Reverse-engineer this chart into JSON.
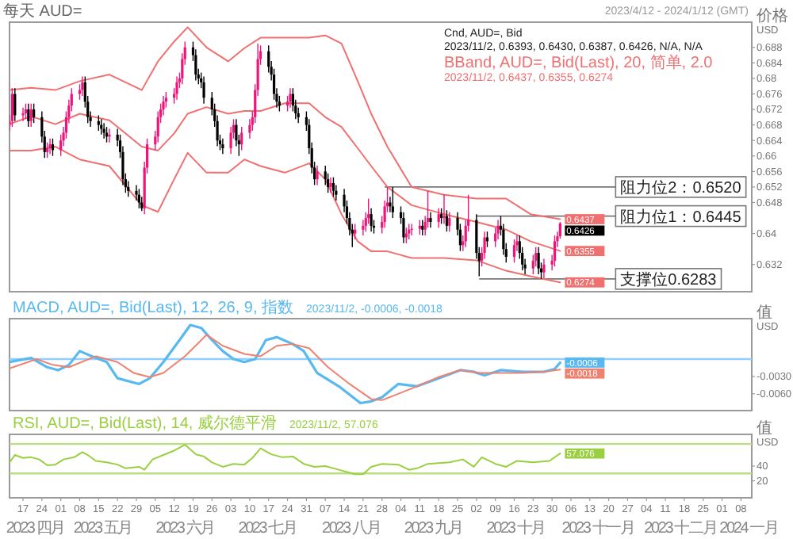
{
  "chart_data": [
    {
      "type": "candlestick",
      "title": "每天 AUD=",
      "subtitle": "2023/4/12 - 2024/1/12 (GMT)",
      "ylabel": "价格\nUSD",
      "x": [
        "2023-04-12",
        "2023-04-13",
        "2023-04-14",
        "2023-04-17",
        "2023-04-18",
        "2023-04-19",
        "2023-04-20",
        "2023-04-21",
        "2023-04-24",
        "2023-04-25",
        "2023-04-26",
        "2023-04-27",
        "2023-04-28",
        "2023-05-01",
        "2023-05-02",
        "2023-05-03",
        "2023-05-04",
        "2023-05-05",
        "2023-05-08",
        "2023-05-09",
        "2023-05-10",
        "2023-05-11",
        "2023-05-12",
        "2023-05-15",
        "2023-05-16",
        "2023-05-17",
        "2023-05-18",
        "2023-05-19",
        "2023-05-22",
        "2023-05-23",
        "2023-05-24",
        "2023-05-25",
        "2023-05-26",
        "2023-05-29",
        "2023-05-30",
        "2023-05-31",
        "2023-06-01",
        "2023-06-02",
        "2023-06-05",
        "2023-06-06",
        "2023-06-07",
        "2023-06-08",
        "2023-06-09",
        "2023-06-12",
        "2023-06-13",
        "2023-06-14",
        "2023-06-15",
        "2023-06-16",
        "2023-06-19",
        "2023-06-20",
        "2023-06-21",
        "2023-06-22",
        "2023-06-23",
        "2023-06-26",
        "2023-06-27",
        "2023-06-28",
        "2023-06-29",
        "2023-06-30",
        "2023-07-03",
        "2023-07-04",
        "2023-07-05",
        "2023-07-06",
        "2023-07-07",
        "2023-07-10",
        "2023-07-11",
        "2023-07-12",
        "2023-07-13",
        "2023-07-14",
        "2023-07-17",
        "2023-07-18",
        "2023-07-19",
        "2023-07-20",
        "2023-07-21",
        "2023-07-24",
        "2023-07-25",
        "2023-07-26",
        "2023-07-27",
        "2023-07-28",
        "2023-07-31",
        "2023-08-01",
        "2023-08-02",
        "2023-08-03",
        "2023-08-04",
        "2023-08-07",
        "2023-08-08",
        "2023-08-09",
        "2023-08-10",
        "2023-08-11",
        "2023-08-14",
        "2023-08-15",
        "2023-08-16",
        "2023-08-17",
        "2023-08-18",
        "2023-08-21",
        "2023-08-22",
        "2023-08-23",
        "2023-08-24",
        "2023-08-25",
        "2023-08-28",
        "2023-08-29",
        "2023-08-30",
        "2023-08-31",
        "2023-09-01",
        "2023-09-04",
        "2023-09-05",
        "2023-09-06",
        "2023-09-07",
        "2023-09-08",
        "2023-09-11",
        "2023-09-12",
        "2023-09-13",
        "2023-09-14",
        "2023-09-15",
        "2023-09-18",
        "2023-09-19",
        "2023-09-20",
        "2023-09-21",
        "2023-09-22",
        "2023-09-25",
        "2023-09-26",
        "2023-09-27",
        "2023-09-28",
        "2023-09-29",
        "2023-10-02",
        "2023-10-03",
        "2023-10-04",
        "2023-10-05",
        "2023-10-06",
        "2023-10-09",
        "2023-10-10",
        "2023-10-11",
        "2023-10-12",
        "2023-10-13",
        "2023-10-16",
        "2023-10-17",
        "2023-10-18",
        "2023-10-19",
        "2023-10-20",
        "2023-10-23",
        "2023-10-24",
        "2023-10-25",
        "2023-10-26",
        "2023-10-27",
        "2023-10-30",
        "2023-10-31",
        "2023-11-01",
        "2023-11-02"
      ],
      "ohlc": [
        [
          0.668,
          0.6705,
          0.6665,
          0.669
        ],
        [
          0.669,
          0.6775,
          0.6675,
          0.676
        ],
        [
          0.676,
          0.6775,
          0.669,
          0.6705
        ],
        [
          0.6705,
          0.6725,
          0.669,
          0.671
        ],
        [
          0.671,
          0.6735,
          0.6695,
          0.672
        ],
        [
          0.672,
          0.6735,
          0.6675,
          0.669
        ],
        [
          0.669,
          0.6735,
          0.6675,
          0.672
        ],
        [
          0.672,
          0.6735,
          0.6685,
          0.67
        ],
        [
          0.67,
          0.6715,
          0.6635,
          0.665
        ],
        [
          0.665,
          0.6665,
          0.6595,
          0.661
        ],
        [
          0.661,
          0.6635,
          0.6595,
          0.662
        ],
        [
          0.662,
          0.6645,
          0.6605,
          0.663
        ],
        [
          0.663,
          0.6645,
          0.66,
          0.6615
        ],
        [
          0.6615,
          0.6655,
          0.66,
          0.664
        ],
        [
          0.664,
          0.6675,
          0.6625,
          0.666
        ],
        [
          0.666,
          0.6715,
          0.6645,
          0.67
        ],
        [
          0.67,
          0.6745,
          0.6685,
          0.673
        ],
        [
          0.673,
          0.6775,
          0.6715,
          0.676
        ],
        [
          0.676,
          0.6785,
          0.6745,
          0.677
        ],
        [
          0.677,
          0.6805,
          0.6755,
          0.679
        ],
        [
          0.679,
          0.6805,
          0.6725,
          0.674
        ],
        [
          0.674,
          0.6755,
          0.6685,
          0.67
        ],
        [
          0.67,
          0.6715,
          0.6675,
          0.669
        ],
        [
          0.669,
          0.6705,
          0.6665,
          0.668
        ],
        [
          0.668,
          0.6695,
          0.6655,
          0.667
        ],
        [
          0.667,
          0.6685,
          0.6645,
          0.666
        ],
        [
          0.666,
          0.6675,
          0.6635,
          0.665
        ],
        [
          0.665,
          0.667,
          0.6635,
          0.6655
        ],
        [
          0.6655,
          0.667,
          0.6625,
          0.664
        ],
        [
          0.664,
          0.6655,
          0.6595,
          0.661
        ],
        [
          0.661,
          0.6625,
          0.6525,
          0.654
        ],
        [
          0.654,
          0.6555,
          0.6505,
          0.652
        ],
        [
          0.652,
          0.6535,
          0.6495,
          0.651
        ],
        [
          0.651,
          0.6525,
          0.6485,
          0.65
        ],
        [
          0.65,
          0.6515,
          0.6465,
          0.648
        ],
        [
          0.648,
          0.6495,
          0.6458,
          0.6465
        ],
        [
          0.6465,
          0.6585,
          0.645,
          0.657
        ],
        [
          0.657,
          0.6645,
          0.6555,
          0.663
        ],
        [
          0.663,
          0.6665,
          0.6615,
          0.665
        ],
        [
          0.665,
          0.6715,
          0.6635,
          0.67
        ],
        [
          0.67,
          0.6735,
          0.6685,
          0.672
        ],
        [
          0.672,
          0.6755,
          0.6705,
          0.674
        ],
        [
          0.674,
          0.6765,
          0.6725,
          0.675
        ],
        [
          0.675,
          0.6775,
          0.6735,
          0.676
        ],
        [
          0.676,
          0.6805,
          0.6745,
          0.679
        ],
        [
          0.679,
          0.6815,
          0.6775,
          0.68
        ],
        [
          0.68,
          0.6865,
          0.6785,
          0.685
        ],
        [
          0.685,
          0.6895,
          0.6835,
          0.688
        ],
        [
          0.688,
          0.6895,
          0.6845,
          0.686
        ],
        [
          0.686,
          0.6875,
          0.6795,
          0.681
        ],
        [
          0.681,
          0.6825,
          0.6785,
          0.68
        ],
        [
          0.68,
          0.6815,
          0.6775,
          0.679
        ],
        [
          0.679,
          0.6805,
          0.6735,
          0.675
        ],
        [
          0.675,
          0.6765,
          0.6705,
          0.672
        ],
        [
          0.672,
          0.6735,
          0.6675,
          0.669
        ],
        [
          0.669,
          0.6705,
          0.6625,
          0.664
        ],
        [
          0.664,
          0.6655,
          0.6615,
          0.663
        ],
        [
          0.663,
          0.6645,
          0.6605,
          0.662
        ],
        [
          0.662,
          0.6675,
          0.6605,
          0.666
        ],
        [
          0.666,
          0.6695,
          0.6645,
          0.668
        ],
        [
          0.668,
          0.6695,
          0.6625,
          0.664
        ],
        [
          0.664,
          0.6655,
          0.66,
          0.663
        ],
        [
          0.663,
          0.6675,
          0.6615,
          0.666
        ],
        [
          0.666,
          0.6695,
          0.6645,
          0.668
        ],
        [
          0.668,
          0.6715,
          0.6665,
          0.67
        ],
        [
          0.67,
          0.6785,
          0.6685,
          0.677
        ],
        [
          0.677,
          0.689,
          0.6755,
          0.685
        ],
        [
          0.685,
          0.6885,
          0.6835,
          0.687
        ],
        [
          0.687,
          0.6885,
          0.6815,
          0.683
        ],
        [
          0.683,
          0.6845,
          0.6795,
          0.681
        ],
        [
          0.681,
          0.6825,
          0.6745,
          0.676
        ],
        [
          0.676,
          0.6775,
          0.6725,
          0.674
        ],
        [
          0.674,
          0.6755,
          0.6715,
          0.673
        ],
        [
          0.673,
          0.6755,
          0.6715,
          0.674
        ],
        [
          0.674,
          0.6775,
          0.6725,
          0.676
        ],
        [
          0.676,
          0.6775,
          0.6715,
          0.673
        ],
        [
          0.673,
          0.6745,
          0.6695,
          0.671
        ],
        [
          0.671,
          0.6725,
          0.6685,
          0.67
        ],
        [
          0.67,
          0.6715,
          0.6665,
          0.668
        ],
        [
          0.668,
          0.6695,
          0.6605,
          0.662
        ],
        [
          0.662,
          0.6635,
          0.6555,
          0.657
        ],
        [
          0.657,
          0.6585,
          0.6525,
          0.654
        ],
        [
          0.654,
          0.6575,
          0.6525,
          0.656
        ],
        [
          0.656,
          0.6575,
          0.6525,
          0.654
        ],
        [
          0.654,
          0.6555,
          0.6505,
          0.652
        ],
        [
          0.652,
          0.6545,
          0.6505,
          0.653
        ],
        [
          0.653,
          0.6545,
          0.6495,
          0.651
        ],
        [
          0.651,
          0.6525,
          0.6485,
          0.65
        ],
        [
          0.65,
          0.6515,
          0.6455,
          0.647
        ],
        [
          0.647,
          0.6485,
          0.6425,
          0.644
        ],
        [
          0.644,
          0.6455,
          0.6395,
          0.641
        ],
        [
          0.641,
          0.6425,
          0.6365,
          0.64
        ],
        [
          0.64,
          0.6425,
          0.6385,
          0.641
        ],
        [
          0.641,
          0.6435,
          0.6395,
          0.642
        ],
        [
          0.642,
          0.6455,
          0.6405,
          0.644
        ],
        [
          0.644,
          0.649,
          0.6425,
          0.645
        ],
        [
          0.645,
          0.6465,
          0.6405,
          0.642
        ],
        [
          0.642,
          0.6435,
          0.64,
          0.6415
        ],
        [
          0.6415,
          0.6445,
          0.64,
          0.643
        ],
        [
          0.643,
          0.6485,
          0.6415,
          0.647
        ],
        [
          0.647,
          0.652,
          0.6455,
          0.648
        ],
        [
          0.648,
          0.6495,
          0.6455,
          0.647
        ],
        [
          0.647,
          0.652,
          0.644,
          0.6455
        ],
        [
          0.6455,
          0.647,
          0.6425,
          0.644
        ],
        [
          0.644,
          0.6455,
          0.6375,
          0.639
        ],
        [
          0.639,
          0.6415,
          0.6375,
          0.64
        ],
        [
          0.64,
          0.6425,
          0.6385,
          0.641
        ],
        [
          0.641,
          0.6425,
          0.6395,
          0.6412
        ],
        [
          0.6412,
          0.6435,
          0.6397,
          0.642
        ],
        [
          0.642,
          0.6435,
          0.6395,
          0.641
        ],
        [
          0.641,
          0.6445,
          0.6395,
          0.643
        ],
        [
          0.643,
          0.651,
          0.6415,
          0.644
        ],
        [
          0.644,
          0.6455,
          0.6415,
          0.643
        ],
        [
          0.643,
          0.6465,
          0.6415,
          0.645
        ],
        [
          0.645,
          0.6465,
          0.6425,
          0.644
        ],
        [
          0.644,
          0.65,
          0.6425,
          0.6445
        ],
        [
          0.6445,
          0.646,
          0.6405,
          0.642
        ],
        [
          0.642,
          0.6455,
          0.6405,
          0.644
        ],
        [
          0.644,
          0.6455,
          0.6395,
          0.641
        ],
        [
          0.641,
          0.6425,
          0.6355,
          0.637
        ],
        [
          0.637,
          0.6395,
          0.6355,
          0.638
        ],
        [
          0.638,
          0.6435,
          0.6365,
          0.642
        ],
        [
          0.642,
          0.65,
          0.6405,
          0.6435
        ],
        [
          0.6435,
          0.645,
          0.6335,
          0.635
        ],
        [
          0.635,
          0.6365,
          0.629,
          0.633
        ],
        [
          0.633,
          0.6365,
          0.6315,
          0.635
        ],
        [
          0.635,
          0.6405,
          0.6335,
          0.639
        ],
        [
          0.639,
          0.6405,
          0.6365,
          0.638
        ],
        [
          0.638,
          0.6415,
          0.6365,
          0.64
        ],
        [
          0.64,
          0.6435,
          0.6385,
          0.642
        ],
        [
          0.642,
          0.6445,
          0.6395,
          0.641
        ],
        [
          0.641,
          0.6425,
          0.6345,
          0.636
        ],
        [
          0.636,
          0.6375,
          0.6325,
          0.634
        ],
        [
          0.634,
          0.6385,
          0.6325,
          0.637
        ],
        [
          0.637,
          0.6395,
          0.6355,
          0.638
        ],
        [
          0.638,
          0.6395,
          0.6335,
          0.635
        ],
        [
          0.635,
          0.6365,
          0.6305,
          0.632
        ],
        [
          0.632,
          0.6335,
          0.6295,
          0.631
        ],
        [
          0.631,
          0.6345,
          0.6295,
          0.633
        ],
        [
          0.633,
          0.6365,
          0.6315,
          0.635
        ],
        [
          0.635,
          0.6365,
          0.6295,
          0.631
        ],
        [
          0.631,
          0.6325,
          0.6283,
          0.63
        ],
        [
          0.63,
          0.6335,
          0.6285,
          0.632
        ],
        [
          0.632,
          0.6345,
          0.6305,
          0.633
        ],
        [
          0.633,
          0.6395,
          0.6315,
          0.638
        ],
        [
          0.638,
          0.6405,
          0.6365,
          0.6393
        ],
        [
          0.6393,
          0.643,
          0.6387,
          0.6426
        ]
      ],
      "value_labels": [
        null,
        null,
        null,
        null,
        null,
        null,
        null,
        null,
        null,
        null,
        null,
        null,
        null,
        null,
        null,
        null,
        null,
        null,
        null,
        null,
        null,
        null,
        null,
        null,
        null,
        null,
        null,
        null,
        null,
        null,
        null,
        null,
        null,
        null,
        null,
        null,
        null,
        null,
        null,
        null,
        null,
        null,
        null,
        null,
        null,
        null,
        null,
        null,
        null,
        null,
        null,
        null,
        null,
        null,
        null,
        null,
        null,
        null,
        null,
        null,
        null,
        null,
        null,
        null,
        null,
        null,
        null,
        null,
        null,
        null,
        null,
        null,
        null,
        null,
        null,
        null,
        null,
        null,
        null,
        null,
        null,
        null,
        null,
        null,
        null,
        null,
        null,
        null,
        null,
        null,
        null,
        null,
        null,
        null,
        null,
        null,
        null,
        null,
        null,
        null,
        null,
        null,
        null,
        null,
        null,
        null,
        null,
        null,
        null,
        null,
        null,
        null,
        null,
        null,
        null,
        null,
        null,
        null,
        null,
        null,
        null,
        null,
        null,
        null,
        null,
        null,
        null,
        null,
        null,
        null,
        null,
        null,
        null,
        null,
        null,
        null,
        null,
        null,
        null,
        null,
        null,
        null,
        null,
        null,
        null,
        null,
        "0.6426"
      ],
      "series": [
        {
          "type": "line",
          "color": "#f07070",
          "x": [
            "2023-04-12",
            "2023-04-20",
            "2023-04-29",
            "2023-05-08",
            "2023-05-19",
            "2023-05-31",
            "2023-06-06",
            "2023-06-12",
            "2023-06-17",
            "2023-06-24",
            "2023-07-02",
            "2023-07-08",
            "2023-07-14",
            "2023-07-23",
            "2023-08-01",
            "2023-08-07",
            "2023-08-13",
            "2023-08-19",
            "2023-08-24",
            "2023-08-30",
            "2023-09-08",
            "2023-09-20",
            "2023-10-02",
            "2023-10-13",
            "2023-10-22",
            "2023-11-02"
          ],
          "values": [
            0.677,
            0.6776,
            0.677,
            0.6793,
            0.681,
            0.677,
            0.6844,
            0.6895,
            0.6932,
            0.688,
            0.6844,
            0.6878,
            0.6905,
            0.6905,
            0.6905,
            0.6911,
            0.689,
            0.6793,
            0.6709,
            0.6624,
            0.652,
            0.65,
            0.649,
            0.649,
            0.645,
            0.6437
          ],
          "value_labels": [
            null,
            null,
            null,
            null,
            null,
            null,
            null,
            null,
            null,
            null,
            null,
            null,
            null,
            null,
            null,
            null,
            null,
            null,
            null,
            null,
            null,
            null,
            null,
            null,
            null,
            "0.6437"
          ]
        },
        {
          "type": "line",
          "color": "#f07070",
          "x": [
            "2023-04-12",
            "2023-04-20",
            "2023-04-29",
            "2023-05-08",
            "2023-05-19",
            "2023-05-31",
            "2023-06-06",
            "2023-06-12",
            "2023-06-17",
            "2023-06-24",
            "2023-07-02",
            "2023-07-08",
            "2023-07-14",
            "2023-07-23",
            "2023-08-01",
            "2023-08-07",
            "2023-08-13",
            "2023-08-19",
            "2023-08-24",
            "2023-08-30",
            "2023-09-08",
            "2023-09-20",
            "2023-10-02",
            "2023-10-13",
            "2023-10-22",
            "2023-11-02"
          ],
          "values": [
            0.6682,
            0.6702,
            0.6682,
            0.6709,
            0.6692,
            0.6624,
            0.6614,
            0.6658,
            0.6709,
            0.6726,
            0.6709,
            0.6716,
            0.6716,
            0.6736,
            0.6736,
            0.67,
            0.6675,
            0.662,
            0.6574,
            0.652,
            0.6473,
            0.645,
            0.643,
            0.641,
            0.638,
            0.6355
          ],
          "value_labels": [
            null,
            null,
            null,
            null,
            null,
            null,
            null,
            null,
            null,
            null,
            null,
            null,
            null,
            null,
            null,
            null,
            null,
            null,
            null,
            null,
            null,
            null,
            null,
            null,
            null,
            "0.6355"
          ]
        },
        {
          "type": "line",
          "color": "#f07070",
          "x": [
            "2023-04-12",
            "2023-04-20",
            "2023-04-29",
            "2023-05-08",
            "2023-05-19",
            "2023-05-31",
            "2023-06-06",
            "2023-06-12",
            "2023-06-17",
            "2023-06-24",
            "2023-07-02",
            "2023-07-08",
            "2023-07-14",
            "2023-07-23",
            "2023-08-01",
            "2023-08-07",
            "2023-08-13",
            "2023-08-19",
            "2023-08-24",
            "2023-08-30",
            "2023-09-08",
            "2023-09-20",
            "2023-10-02",
            "2023-10-13",
            "2023-10-22",
            "2023-11-02"
          ],
          "values": [
            0.6614,
            0.6614,
            0.6624,
            0.6591,
            0.6574,
            0.6473,
            0.6456,
            0.654,
            0.6608,
            0.6557,
            0.6557,
            0.6591,
            0.6574,
            0.6557,
            0.6581,
            0.654,
            0.645,
            0.638,
            0.6354,
            0.6354,
            0.6337,
            0.6337,
            0.6331,
            0.6304,
            0.629,
            0.6274
          ],
          "value_labels": [
            null,
            null,
            null,
            null,
            null,
            null,
            null,
            null,
            null,
            null,
            null,
            null,
            null,
            null,
            null,
            null,
            null,
            null,
            null,
            null,
            null,
            null,
            null,
            null,
            null,
            "0.6274"
          ]
        }
      ],
      "xlim": [
        "2023-04-12",
        "2024-01-12"
      ],
      "ylim": [
        0.625,
        0.6945
      ],
      "yticks": [
        0.632,
        0.64,
        0.648,
        0.652,
        0.656,
        0.66,
        0.664,
        0.668,
        0.672,
        0.676,
        0.68,
        0.684,
        0.688
      ],
      "tick_labels": "y",
      "annotations": [
        "Cnd, AUD=, Bid",
        "2023/11/2, 0.6393, 0.6430, 0.6387, 0.6426, N/A, N/A",
        "BBand, AUD=, Bid(Last), 20, 简单, 2.0",
        "2023/11/2, 0.6437, 0.6355, 0.6274",
        {
          "text": "阻力位2：0.6520",
          "x": "2023-08-29",
          "y": 0.652
        },
        {
          "text": "阻力位1：0.6445",
          "x": "2023-10-02",
          "y": 0.6445
        },
        {
          "text": "支撑位0.6283",
          "x": "2023-10-03",
          "y": 0.6283
        }
      ]
    },
    {
      "type": "line",
      "ylabel": "值\nUSD",
      "series": [
        {
          "color": "#58b8f0",
          "x": [
            "2023-04-12",
            "2023-04-20",
            "2023-04-26",
            "2023-04-30",
            "2023-05-04",
            "2023-05-08",
            "2023-05-12",
            "2023-05-18",
            "2023-05-22",
            "2023-05-30",
            "2023-06-03",
            "2023-06-08",
            "2023-06-14",
            "2023-06-18",
            "2023-06-22",
            "2023-06-26",
            "2023-06-30",
            "2023-07-04",
            "2023-07-08",
            "2023-07-12",
            "2023-07-16",
            "2023-07-20",
            "2023-07-26",
            "2023-07-30",
            "2023-08-04",
            "2023-08-12",
            "2023-08-20",
            "2023-08-24",
            "2023-08-28",
            "2023-09-03",
            "2023-09-10",
            "2023-09-18",
            "2023-09-26",
            "2023-10-01",
            "2023-10-05",
            "2023-10-11",
            "2023-10-19",
            "2023-10-27",
            "2023-10-31",
            "2023-11-02"
          ],
          "values": [
            -0.0005,
            0.0002,
            -0.0014,
            -0.0019,
            -0.001,
            0.0014,
            0.0006,
            -0.0005,
            -0.0033,
            -0.0043,
            -0.0033,
            -0.0005,
            0.0033,
            0.0059,
            0.0054,
            0.0033,
            0.0014,
            0.0,
            -0.0005,
            0.0,
            0.0033,
            0.0038,
            0.0026,
            0.0014,
            -0.0024,
            -0.0047,
            -0.0076,
            -0.0073,
            -0.0066,
            -0.0043,
            -0.0047,
            -0.0033,
            -0.0019,
            -0.0022,
            -0.0028,
            -0.0019,
            -0.0022,
            -0.0022,
            -0.0017,
            -0.0006
          ],
          "value_labels": [
            null,
            null,
            null,
            null,
            null,
            null,
            null,
            null,
            null,
            null,
            null,
            null,
            null,
            null,
            null,
            null,
            null,
            null,
            null,
            null,
            null,
            null,
            null,
            null,
            null,
            null,
            null,
            null,
            null,
            null,
            null,
            null,
            null,
            null,
            null,
            null,
            null,
            null,
            null,
            "-0.0006"
          ]
        },
        {
          "color": "#f08070",
          "x": [
            "2023-04-12",
            "2023-04-22",
            "2023-04-28",
            "2023-05-04",
            "2023-05-14",
            "2023-05-22",
            "2023-05-28",
            "2023-06-03",
            "2023-06-08",
            "2023-06-16",
            "2023-06-24",
            "2023-06-30",
            "2023-07-08",
            "2023-07-14",
            "2023-07-20",
            "2023-07-26",
            "2023-08-01",
            "2023-08-08",
            "2023-08-16",
            "2023-08-24",
            "2023-08-28",
            "2023-09-03",
            "2023-09-10",
            "2023-09-18",
            "2023-09-26",
            "2023-10-03",
            "2023-10-11",
            "2023-10-19",
            "2023-10-27",
            "2023-11-02"
          ],
          "values": [
            -0.0016,
            0.0,
            -0.001,
            -0.0014,
            0.0005,
            -0.0005,
            -0.0024,
            -0.0031,
            -0.0024,
            0.0005,
            0.0042,
            0.0023,
            0.0009,
            0.0005,
            0.0023,
            0.0026,
            0.0019,
            -0.0014,
            -0.0043,
            -0.0069,
            -0.0071,
            -0.006,
            -0.0047,
            -0.0031,
            -0.0019,
            -0.0024,
            -0.0024,
            -0.0024,
            -0.0022,
            -0.0018
          ],
          "value_labels": [
            null,
            null,
            null,
            null,
            null,
            null,
            null,
            null,
            null,
            null,
            null,
            null,
            null,
            null,
            null,
            null,
            null,
            null,
            null,
            null,
            null,
            null,
            null,
            null,
            null,
            null,
            null,
            null,
            null,
            "-0.0018"
          ]
        }
      ],
      "xlim": [
        "2023-04-12",
        "2024-01-12"
      ],
      "ylim": [
        -0.0089,
        0.007
      ],
      "yticks": [
        {
          "value": -0.003,
          "label": "-0.0030"
        },
        {
          "value": -0.006,
          "label": "-0.0060"
        }
      ],
      "tick_labels": "y",
      "ref_lines": [
        {
          "axis": "y",
          "value": 0,
          "color": "#90d0ff"
        }
      ],
      "annotations": [
        "MACD, AUD=, Bid(Last), 12, 26, 9, 指数",
        "2023/11/2, -0.0006, -0.0018"
      ]
    },
    {
      "type": "line",
      "ylabel": "值\nUSD",
      "series": [
        {
          "color": "#9ad040",
          "x": [
            "2023-04-12",
            "2023-04-14",
            "2023-04-17",
            "2023-04-20",
            "2023-04-23",
            "2023-04-26",
            "2023-04-29",
            "2023-05-02",
            "2023-05-06",
            "2023-05-09",
            "2023-05-11",
            "2023-05-14",
            "2023-05-18",
            "2023-05-22",
            "2023-05-25",
            "2023-05-30",
            "2023-06-01",
            "2023-06-04",
            "2023-06-08",
            "2023-06-12",
            "2023-06-16",
            "2023-06-20",
            "2023-06-23",
            "2023-06-26",
            "2023-06-30",
            "2023-07-04",
            "2023-07-08",
            "2023-07-11",
            "2023-07-14",
            "2023-07-18",
            "2023-07-22",
            "2023-07-26",
            "2023-07-30",
            "2023-08-03",
            "2023-08-07",
            "2023-08-12",
            "2023-08-18",
            "2023-08-21",
            "2023-08-24",
            "2023-08-28",
            "2023-09-03",
            "2023-09-07",
            "2023-09-10",
            "2023-09-14",
            "2023-09-22",
            "2023-09-27",
            "2023-10-01",
            "2023-10-04",
            "2023-10-09",
            "2023-10-13",
            "2023-10-17",
            "2023-10-23",
            "2023-10-29",
            "2023-11-02"
          ],
          "values": [
            45,
            55,
            51,
            52,
            49,
            41,
            42,
            49,
            52,
            59,
            55,
            47,
            45,
            42,
            37,
            39,
            35,
            49,
            55,
            61,
            69,
            56,
            53,
            45,
            39,
            43,
            42,
            51,
            64,
            56,
            52,
            53,
            43,
            39,
            40,
            35,
            29,
            29,
            39,
            43,
            42,
            35,
            37,
            43,
            45,
            49,
            39,
            52,
            43,
            39,
            47,
            45,
            47,
            57.076
          ],
          "value_labels": [
            null,
            null,
            null,
            null,
            null,
            null,
            null,
            null,
            null,
            null,
            null,
            null,
            null,
            null,
            null,
            null,
            null,
            null,
            null,
            null,
            null,
            null,
            null,
            null,
            null,
            null,
            null,
            null,
            null,
            null,
            null,
            null,
            null,
            null,
            null,
            null,
            null,
            null,
            null,
            null,
            null,
            null,
            null,
            null,
            null,
            null,
            null,
            null,
            null,
            null,
            null,
            null,
            null,
            "57.076"
          ]
        }
      ],
      "xlim": [
        "2023-04-12",
        "2024-01-12"
      ],
      "ylim": [
        -3,
        83
      ],
      "yticks": [
        20,
        40
      ],
      "ref_lines": [
        {
          "axis": "y",
          "value": 70,
          "color": "#b8e080"
        },
        {
          "axis": "y",
          "value": 30,
          "color": "#b8e080"
        }
      ],
      "xticks": [
        {
          "value": "2023-04-17",
          "label": "17"
        },
        {
          "value": "2023-04-24",
          "label": "24"
        },
        {
          "value": "2023-05-01",
          "label": "01"
        },
        {
          "value": "2023-05-08",
          "label": "08"
        },
        {
          "value": "2023-05-15",
          "label": "15"
        },
        {
          "value": "2023-05-22",
          "label": "22"
        },
        {
          "value": "2023-05-29",
          "label": "29"
        },
        {
          "value": "2023-06-05",
          "label": "05"
        },
        {
          "value": "2023-06-12",
          "label": "12"
        },
        {
          "value": "2023-06-19",
          "label": "19"
        },
        {
          "value": "2023-06-26",
          "label": "26"
        },
        {
          "value": "2023-07-03",
          "label": "03"
        },
        {
          "value": "2023-07-10",
          "label": "10"
        },
        {
          "value": "2023-07-17",
          "label": "17"
        },
        {
          "value": "2023-07-24",
          "label": "24"
        },
        {
          "value": "2023-07-31",
          "label": "31"
        },
        {
          "value": "2023-08-07",
          "label": "07"
        },
        {
          "value": "2023-08-14",
          "label": "14"
        },
        {
          "value": "2023-08-21",
          "label": "21"
        },
        {
          "value": "2023-08-28",
          "label": "28"
        },
        {
          "value": "2023-09-04",
          "label": "04"
        },
        {
          "value": "2023-09-11",
          "label": "11"
        },
        {
          "value": "2023-09-18",
          "label": "18"
        },
        {
          "value": "2023-09-25",
          "label": "25"
        },
        {
          "value": "2023-10-02",
          "label": "02"
        },
        {
          "value": "2023-10-09",
          "label": "09"
        },
        {
          "value": "2023-10-16",
          "label": "16"
        },
        {
          "value": "2023-10-23",
          "label": "23"
        },
        {
          "value": "2023-10-30",
          "label": "30"
        },
        {
          "value": "2023-11-06",
          "label": "06"
        },
        {
          "value": "2023-11-13",
          "label": "13"
        },
        {
          "value": "2023-11-20",
          "label": "20"
        },
        {
          "value": "2023-11-27",
          "label": "27"
        },
        {
          "value": "2023-12-04",
          "label": "04"
        },
        {
          "value": "2023-12-11",
          "label": "11"
        },
        {
          "value": "2023-12-18",
          "label": "18"
        },
        {
          "value": "2023-12-25",
          "label": "25"
        },
        {
          "value": "2024-01-01",
          "label": "01"
        },
        {
          "value": "2024-01-08",
          "label": "08"
        }
      ],
      "annotations": [
        "RSI, AUD=, Bid(Last), 14, 威尔德平滑",
        "2023/11/2, 57.076",
        "2023 四月",
        "2023 五月",
        "2023 六月",
        "2023 七月",
        "2023 八月",
        "2023 九月",
        "2023 十月",
        "2023 十一月",
        "2023 十二月",
        "2024 一月"
      ]
    }
  ]
}
